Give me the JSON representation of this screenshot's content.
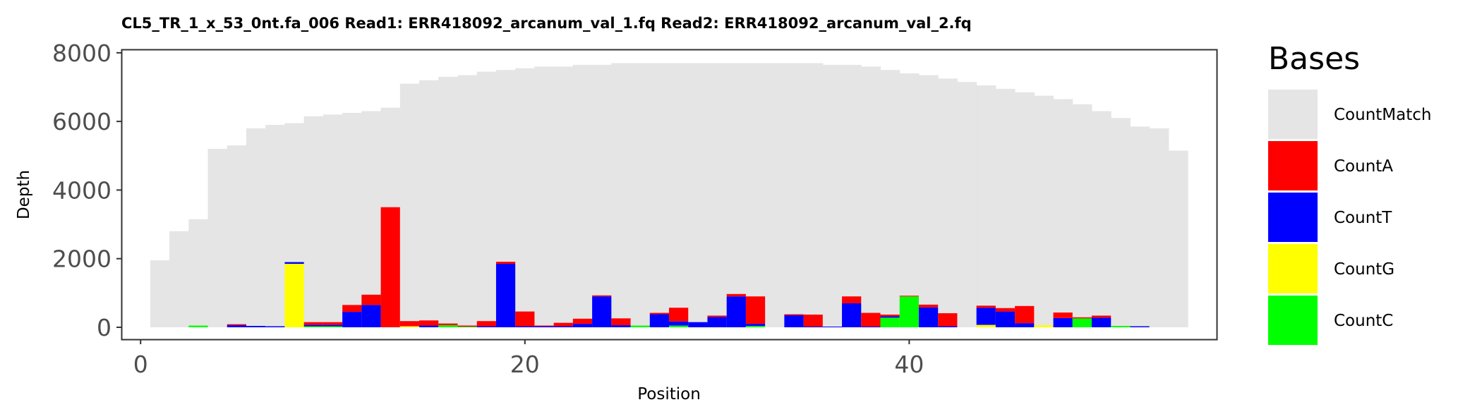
{
  "chart_data": {
    "type": "bar",
    "title": "CL5_TR_1_x_53_0nt.fa_006   Read1: ERR418092_arcanum_val_1.fq   Read2: ERR418092_arcanum_val_2.fq",
    "xlabel": "Position",
    "ylabel": "Depth",
    "xlim": [
      -1,
      56
    ],
    "ylim": [
      -350,
      8100
    ],
    "x_ticks": [
      0,
      20,
      40
    ],
    "x_tick_labels": [
      "0",
      "20",
      "40"
    ],
    "y_ticks": [
      0,
      2000,
      4000,
      6000,
      8000
    ],
    "y_tick_labels": [
      "0",
      "2000",
      "4000",
      "6000",
      "8000"
    ],
    "positions": [
      1,
      2,
      3,
      4,
      5,
      6,
      7,
      8,
      9,
      10,
      11,
      12,
      13,
      14,
      15,
      16,
      17,
      18,
      19,
      20,
      21,
      22,
      23,
      24,
      25,
      26,
      27,
      28,
      29,
      30,
      31,
      32,
      33,
      34,
      35,
      36,
      37,
      38,
      39,
      40,
      41,
      42,
      43,
      44,
      45,
      46,
      47,
      48,
      49,
      50,
      51,
      52,
      53,
      54
    ],
    "grid": false,
    "legend": {
      "title": "Bases",
      "position": "right"
    },
    "series": [
      {
        "name": "CountMatch",
        "color": "#e5e5e5",
        "values": [
          1950,
          2800,
          3150,
          5200,
          5300,
          5800,
          5900,
          5950,
          6150,
          6200,
          6250,
          6300,
          6400,
          7100,
          7200,
          7300,
          7350,
          7450,
          7500,
          7550,
          7600,
          7600,
          7650,
          7650,
          7700,
          7700,
          7700,
          7700,
          7700,
          7700,
          7700,
          7700,
          7700,
          7700,
          7700,
          7650,
          7650,
          7600,
          7500,
          7400,
          7350,
          7250,
          7150,
          7050,
          6950,
          6850,
          6750,
          6650,
          6500,
          6300,
          6100,
          5850,
          5800,
          5150
        ]
      },
      {
        "name": "CountA",
        "color": "#ff0000",
        "values": [
          0,
          0,
          0,
          0,
          30,
          0,
          0,
          0,
          80,
          80,
          200,
          300,
          3500,
          150,
          150,
          50,
          30,
          150,
          60,
          430,
          20,
          100,
          150,
          30,
          200,
          0,
          40,
          400,
          0,
          40,
          70,
          800,
          0,
          30,
          350,
          0,
          200,
          400,
          50,
          20,
          80,
          380,
          0,
          60,
          100,
          500,
          0,
          160,
          30,
          60,
          0,
          0,
          0,
          0
        ]
      },
      {
        "name": "CountT",
        "color": "#0000ff",
        "values": [
          0,
          0,
          0,
          0,
          60,
          40,
          30,
          50,
          40,
          40,
          450,
          650,
          0,
          0,
          50,
          0,
          0,
          30,
          1850,
          30,
          30,
          30,
          100,
          900,
          60,
          0,
          380,
          120,
          150,
          300,
          900,
          60,
          0,
          350,
          20,
          20,
          700,
          20,
          40,
          0,
          580,
          30,
          0,
          500,
          460,
          120,
          0,
          270,
          0,
          280,
          0,
          30,
          0,
          0
        ]
      },
      {
        "name": "CountG",
        "color": "#ffff00",
        "values": [
          0,
          0,
          0,
          0,
          0,
          0,
          0,
          1850,
          0,
          0,
          0,
          0,
          0,
          30,
          0,
          0,
          0,
          0,
          0,
          0,
          0,
          0,
          0,
          0,
          0,
          0,
          0,
          0,
          0,
          0,
          0,
          0,
          0,
          0,
          0,
          0,
          0,
          0,
          0,
          0,
          0,
          0,
          0,
          70,
          0,
          0,
          60,
          0,
          0,
          0,
          0,
          0,
          0,
          0
        ]
      },
      {
        "name": "CountC",
        "color": "#00ff00",
        "values": [
          0,
          0,
          50,
          0,
          0,
          0,
          0,
          0,
          30,
          30,
          0,
          0,
          0,
          0,
          0,
          60,
          20,
          0,
          0,
          0,
          0,
          0,
          0,
          0,
          0,
          50,
          0,
          50,
          0,
          0,
          0,
          40,
          0,
          0,
          0,
          0,
          0,
          0,
          280,
          900,
          0,
          0,
          0,
          0,
          0,
          0,
          0,
          0,
          260,
          0,
          40,
          0,
          0,
          0
        ]
      }
    ]
  }
}
